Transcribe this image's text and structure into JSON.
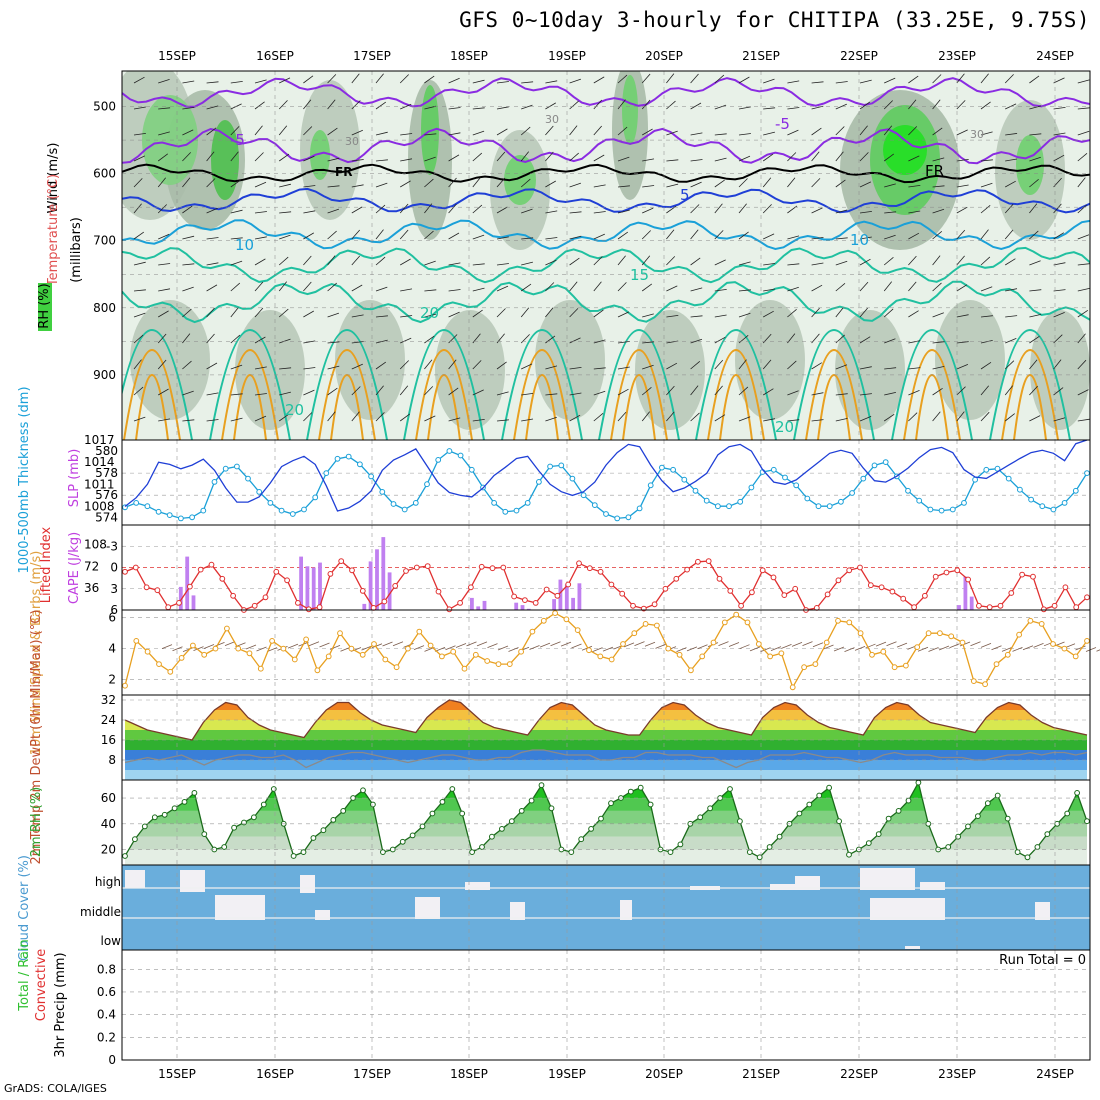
{
  "title": "GFS 0~10day 3-hourly for CHITIPA (33.25E, 9.75S)",
  "credit": "GrADS: COLA/IGES",
  "colors": {
    "purple": "#8a2be2",
    "blue": "#1f3fd6",
    "cyan": "#1aa0d8",
    "teal": "#20c0a0",
    "orange": "#e8a020",
    "red": "#e03030",
    "green": "#30c030",
    "magenta": "#c040e0",
    "cloud": "#6aaedc",
    "brown": "#8b5a3c"
  },
  "chart_data": [
    {
      "name": "upper-air",
      "type": "heatmap",
      "xlabel": "",
      "ylabel": "(millibars)",
      "legend_labels": [
        "RH (%)",
        "Temperature (°C)",
        "Wind (m/s)"
      ],
      "x_ticks": [
        "15SEP",
        "16SEP",
        "17SEP",
        "18SEP",
        "19SEP",
        "20SEP",
        "21SEP",
        "22SEP",
        "23SEP",
        "24SEP"
      ],
      "y_ticks": [
        500,
        600,
        700,
        800,
        900
      ],
      "ylim": [
        1000,
        450
      ],
      "freezing_label": "FR",
      "contour_labels": [
        "-5",
        "5",
        "10",
        "15",
        "20",
        "20",
        "20",
        "30",
        "30",
        "30",
        "-5",
        "10",
        "FR"
      ]
    },
    {
      "name": "thickness-slp",
      "type": "line",
      "ylabel_left": "1000-500mb Thickness (dm)",
      "ylabel_right": "SLP (mb)",
      "left_ticks": [
        574,
        576,
        578,
        580
      ],
      "right_ticks": [
        1008,
        1011,
        1014,
        1017
      ],
      "series": [
        {
          "name": "Thickness",
          "values": [
            574.9,
            575.3,
            575.0,
            574.5,
            574.2,
            573.9,
            574.0,
            574.6,
            577.2,
            578.4,
            578.6,
            577.5,
            576.3,
            575.3,
            574.6,
            574.3,
            574.7,
            575.8,
            578.0,
            579.3,
            579.5,
            578.8,
            577.7,
            576.3,
            575.2,
            574.7,
            575.3,
            577.0,
            579.2,
            580.0,
            579.6,
            578.3,
            576.7,
            575.3,
            574.5,
            574.6,
            575.3,
            577.2,
            578.6,
            578.7,
            577.5,
            576.0,
            575.1,
            574.3,
            573.9,
            574.0,
            574.8,
            576.9,
            578.5,
            578.3,
            577.4,
            576.4,
            575.5,
            575.0,
            575.0,
            575.4,
            576.7,
            578.1,
            578.3,
            577.6,
            576.9,
            575.7,
            575.0,
            575.0,
            575.4,
            576.2,
            577.5,
            578.7,
            579.0,
            577.7,
            576.4,
            575.5,
            574.7,
            574.6,
            574.7,
            575.3,
            577.4,
            578.3,
            578.4,
            577.5,
            576.5,
            575.6,
            575.0,
            574.7,
            575.3,
            576.4,
            578.0
          ]
        },
        {
          "name": "SLP",
          "values": [
            1008.0,
            1009.2,
            1011.0,
            1014.0,
            1013.7,
            1013.1,
            1013.6,
            1014.4,
            1012.9,
            1010.5,
            1008.6,
            1008.6,
            1009.3,
            1011.2,
            1013.4,
            1014.2,
            1014.8,
            1013.7,
            1010.8,
            1007.4,
            1007.8,
            1008.7,
            1010.1,
            1012.9,
            1014.3,
            1015.0,
            1015.8,
            1013.5,
            1011.2,
            1009.9,
            1009.5,
            1009.3,
            1010.5,
            1012.2,
            1013.3,
            1014.5,
            1014.8,
            1012.8,
            1011.0,
            1010.0,
            1009.5,
            1010.0,
            1011.3,
            1013.6,
            1015.3,
            1016.4,
            1016.1,
            1013.6,
            1011.5,
            1010.0,
            1010.5,
            1011.4,
            1012.5,
            1015.0,
            1016.1,
            1016.4,
            1015.5,
            1013.0,
            1011.3,
            1011.0,
            1011.6,
            1012.8,
            1014.0,
            1015.2,
            1015.6,
            1015.2,
            1013.2,
            1011.5,
            1011.3,
            1012.1,
            1013.2,
            1014.6,
            1015.7,
            1016.0,
            1015.3,
            1013.0,
            1012.0,
            1011.8,
            1012.7,
            1013.6,
            1014.5,
            1015.3,
            1015.6,
            1015.2,
            1014.2,
            1016.5,
            1017.0
          ]
        }
      ]
    },
    {
      "name": "cape-li",
      "type": "bar",
      "ylabel_left": "Lifted Index",
      "ylabel_right": "CAPE (J/kg)",
      "left_ticks": [
        -3,
        0,
        3,
        6
      ],
      "right_ticks": [
        36,
        72,
        108
      ],
      "bars": [
        0,
        0,
        0,
        0,
        0,
        0,
        0,
        0,
        0,
        38,
        88,
        24,
        0,
        0,
        0,
        0,
        0,
        0,
        0,
        0,
        0,
        0,
        0,
        0,
        0,
        0,
        0,
        0,
        88,
        72,
        70,
        78,
        0,
        0,
        0,
        0,
        0,
        0,
        10,
        80,
        100,
        120,
        62,
        0,
        0,
        0,
        0,
        0,
        0,
        0,
        0,
        0,
        0,
        0,
        0,
        20,
        6,
        15,
        0,
        0,
        0,
        0,
        12,
        8,
        2,
        0,
        0,
        0,
        18,
        50,
        42,
        20,
        44,
        0,
        0,
        0,
        0,
        0,
        0,
        0,
        0,
        0,
        0,
        0,
        0,
        0,
        0,
        0,
        0,
        0,
        0,
        0,
        0,
        0,
        0,
        0,
        0,
        0,
        0,
        0,
        0,
        0,
        0,
        0,
        0,
        0,
        0,
        0,
        0,
        0,
        0,
        0,
        0,
        0,
        0,
        0,
        0,
        0,
        0,
        0,
        0,
        0,
        0,
        0,
        0,
        0,
        0,
        0,
        0,
        0,
        0,
        0,
        8,
        55,
        22,
        0,
        0,
        0,
        0,
        0,
        0,
        0,
        0,
        0,
        0,
        0,
        0,
        0,
        0,
        0,
        0,
        0,
        0
      ],
      "lifted_index": [
        0.6,
        0.0,
        2.8,
        3.2,
        5.6,
        5.0,
        2.7,
        0.3,
        -0.4,
        1.6,
        4.0,
        6.0,
        5.4,
        4.2,
        0.6,
        1.8,
        5.0,
        5.9,
        5.6,
        0.9,
        -0.9,
        0.4,
        3.3,
        5.7,
        4.8,
        2.6,
        0.5,
        0.0,
        -0.2,
        3.4,
        5.9,
        5.0,
        2.8,
        -0.1,
        0.1,
        0.0,
        4.1,
        4.6,
        5.0,
        3.1,
        4.0,
        2.4,
        -0.6,
        0.1,
        0.6,
        2.4,
        3.7,
        5.4,
        5.8,
        5.2,
        3.0,
        1.6,
        0.3,
        -0.8,
        -0.9,
        1.6,
        3.3,
        5.4,
        3.5,
        0.4,
        1.4,
        3.9,
        3.0,
        6.0,
        5.7,
        3.8,
        1.8,
        0.4,
        0.0,
        2.5,
        2.8,
        3.4,
        4.4,
        5.6,
        4.0,
        1.3,
        0.7,
        0.4,
        1.7,
        5.4,
        5.6,
        5.4,
        3.6,
        1.0,
        1.3,
        5.9,
        5.4,
        2.8,
        5.6,
        4.2
      ]
    },
    {
      "name": "wind10m",
      "type": "line",
      "ylabel": "10m Wind Speed & Barbs (m/s)",
      "y_ticks": [
        2,
        4,
        6
      ],
      "ylim": [
        1,
        6.5
      ],
      "series": [
        {
          "name": "Speed",
          "values": [
            1.6,
            4.5,
            3.8,
            3.0,
            2.5,
            3.4,
            4.2,
            3.6,
            4.0,
            5.3,
            4.0,
            3.7,
            2.7,
            4.5,
            4.0,
            3.3,
            4.6,
            2.6,
            3.5,
            5.0,
            4.0,
            3.6,
            4.3,
            3.3,
            2.8,
            4.0,
            5.1,
            4.2,
            3.5,
            3.8,
            2.7,
            3.6,
            3.2,
            3.0,
            3.0,
            3.8,
            5.1,
            5.8,
            6.3,
            5.9,
            5.2,
            3.9,
            3.5,
            3.3,
            4.3,
            5.0,
            5.6,
            5.5,
            4.0,
            3.6,
            2.6,
            3.5,
            4.4,
            5.7,
            6.2,
            5.7,
            4.3,
            3.5,
            3.7,
            1.5,
            2.8,
            3.0,
            4.4,
            5.8,
            5.7,
            5.0,
            3.6,
            3.8,
            2.8,
            2.9,
            4.1,
            5.0,
            5.0,
            4.8,
            4.4,
            1.9,
            1.7,
            3.0,
            3.6,
            4.9,
            5.8,
            5.6,
            4.3,
            4.0,
            3.5,
            4.5
          ]
        }
      ]
    },
    {
      "name": "temp2m",
      "type": "area",
      "ylabel": "2m Temp 2m DewPt (6hr Min/Max) (°C)",
      "y_ticks": [
        8,
        16,
        24,
        32
      ],
      "ylim": [
        0,
        34
      ],
      "series": [
        {
          "name": "Temp",
          "values": [
            24,
            22,
            20,
            19,
            18,
            17,
            16,
            23,
            28,
            31,
            30,
            25,
            22,
            20,
            19,
            18,
            17,
            23,
            28,
            31,
            31,
            27,
            24,
            22,
            21,
            20,
            19,
            25,
            29,
            32,
            31,
            27,
            23,
            21,
            20,
            19,
            18,
            24,
            29,
            31,
            30,
            26,
            22,
            20,
            19,
            18,
            18,
            24,
            29,
            31,
            30,
            26,
            23,
            21,
            20,
            19,
            18,
            25,
            29,
            31,
            30,
            26,
            23,
            21,
            20,
            19,
            18,
            25,
            29,
            31,
            30,
            26,
            23,
            22,
            21,
            20,
            19,
            25,
            29,
            31,
            30,
            26,
            23,
            21,
            20,
            19,
            18
          ]
        },
        {
          "name": "DewPt",
          "values": [
            7,
            8,
            9,
            8,
            9,
            10,
            8,
            6,
            8,
            9,
            10,
            10,
            9,
            9,
            10,
            8,
            5,
            7,
            9,
            10,
            11,
            11,
            10,
            9,
            8,
            7,
            8,
            9,
            10,
            10,
            9,
            8,
            8,
            9,
            9,
            11,
            12,
            12,
            11,
            10,
            10,
            10,
            8,
            8,
            9,
            9,
            11,
            11,
            10,
            10,
            10,
            9,
            9,
            7,
            5,
            7,
            8,
            10,
            10,
            10,
            11,
            10,
            9,
            9,
            8,
            7,
            8,
            10,
            11,
            10,
            10,
            10,
            9,
            9,
            9,
            8,
            8,
            9,
            10,
            10,
            11,
            10,
            11,
            11,
            10,
            11
          ]
        }
      ]
    },
    {
      "name": "rh2m",
      "type": "area",
      "ylabel": "2m RH (%)",
      "y_ticks": [
        20,
        40,
        60
      ],
      "ylim": [
        8,
        74
      ],
      "values": [
        15,
        28,
        38,
        45,
        47,
        52,
        57,
        64,
        32,
        20,
        22,
        37,
        41,
        45,
        55,
        67,
        40,
        15,
        18,
        29,
        35,
        43,
        50,
        60,
        66,
        55,
        18,
        20,
        26,
        31,
        38,
        48,
        57,
        67,
        48,
        18,
        22,
        30,
        36,
        42,
        50,
        58,
        70,
        52,
        20,
        18,
        28,
        36,
        44,
        56,
        60,
        65,
        68,
        55,
        20,
        18,
        24,
        40,
        45,
        52,
        60,
        67,
        42,
        18,
        14,
        22,
        30,
        40,
        48,
        55,
        62,
        68,
        42,
        16,
        20,
        25,
        32,
        44,
        50,
        58,
        72,
        40,
        20,
        22,
        30,
        38,
        46,
        56,
        62,
        44,
        18,
        14,
        22,
        32,
        40,
        48,
        64,
        42
      ]
    },
    {
      "name": "cloud-cover",
      "type": "bar",
      "ylabel": "Cloud Cover (%)",
      "levels": [
        "high",
        "middle",
        "low"
      ]
    },
    {
      "name": "precip",
      "type": "bar",
      "ylabel": "3hr Precip (mm)",
      "legend_labels": [
        "Total / Rain",
        "Convective"
      ],
      "y_ticks": [
        0,
        0.2,
        0.4,
        0.6,
        0.8
      ],
      "ylim": [
        0,
        0.97
      ],
      "run_total": "Run Total = 0",
      "x_ticks": [
        "15SEP",
        "16SEP",
        "17SEP",
        "18SEP",
        "19SEP",
        "20SEP",
        "21SEP",
        "22SEP",
        "23SEP",
        "24SEP"
      ]
    }
  ]
}
